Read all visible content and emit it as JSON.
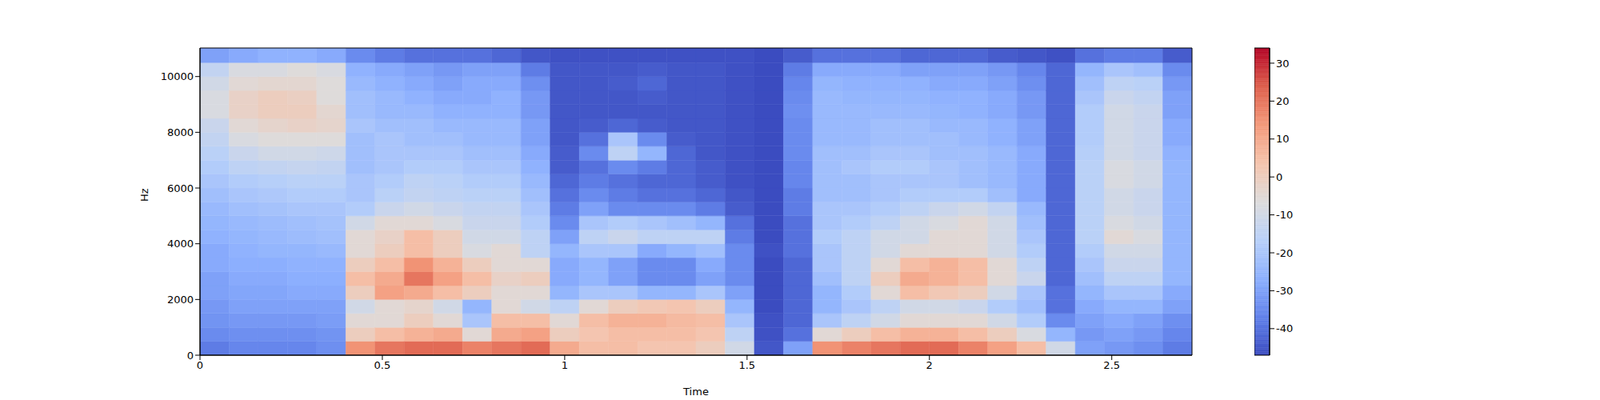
{
  "chart_data": {
    "type": "heatmap",
    "xlabel": "Time",
    "ylabel": "Hz",
    "color": "coolwarm",
    "grid": false,
    "x": [
      0,
      0.08,
      0.16,
      0.24,
      0.32,
      0.4,
      0.48,
      0.56,
      0.64,
      0.72,
      0.8,
      0.88,
      0.96,
      1.04,
      1.12,
      1.2,
      1.28,
      1.36,
      1.44,
      1.52,
      1.6,
      1.68,
      1.76,
      1.84,
      1.92,
      2,
      2.08,
      2.16,
      2.24,
      2.32,
      2.4,
      2.48,
      2.56,
      2.64,
      2.72
    ],
    "y": [
      0,
      500,
      1000,
      1500,
      2000,
      2500,
      3000,
      3500,
      4000,
      4500,
      5000,
      5500,
      6000,
      6500,
      7000,
      7500,
      8000,
      8500,
      9000,
      9500,
      10000,
      10500,
      11025
    ],
    "xlim": [
      0,
      2.72
    ],
    "ylim": [
      0,
      11025
    ],
    "xticks": [
      0,
      0.5,
      1,
      1.5,
      2,
      2.5
    ],
    "yticks": [
      0,
      2000,
      4000,
      6000,
      8000,
      10000
    ],
    "colorbar": {
      "range": [
        -47,
        34
      ],
      "ticks": [
        -40,
        -30,
        -20,
        -10,
        0,
        10,
        20,
        30
      ]
    },
    "cells": [
      [
        -38,
        -35,
        -33,
        -32,
        -30,
        -30,
        -28,
        -28,
        -26,
        -25,
        -24,
        -22,
        -20,
        -18,
        -16,
        -14,
        -12,
        -8,
        -8,
        -10,
        -14,
        -30
      ],
      [
        -36,
        -34,
        -32,
        -30,
        -29,
        -28,
        -27,
        -26,
        -25,
        -24,
        -22,
        -20,
        -18,
        -15,
        -12,
        -8,
        -5,
        -2,
        -2,
        -5,
        -8,
        -28
      ],
      [
        -36,
        -34,
        -32,
        -30,
        -29,
        -28,
        -27,
        -25,
        -24,
        -23,
        -21,
        -19,
        -17,
        -14,
        -10,
        -6,
        -3,
        0,
        0,
        -4,
        -8,
        -26
      ],
      [
        -36,
        -34,
        -32,
        -30,
        -28,
        -27,
        -26,
        -25,
        -23,
        -22,
        -20,
        -18,
        -16,
        -13,
        -10,
        -6,
        -2,
        0,
        -1,
        -4,
        -6,
        -26
      ],
      [
        -34,
        -33,
        -31,
        -30,
        -28,
        -27,
        -26,
        -24,
        -22,
        -21,
        -20,
        -18,
        -16,
        -14,
        -11,
        -6,
        -3,
        -4,
        -6,
        -6,
        -8,
        -28
      ],
      [
        15,
        0,
        -5,
        -10,
        0,
        5,
        0,
        -5,
        -5,
        -10,
        -18,
        -20,
        -20,
        -22,
        -22,
        -22,
        -20,
        -22,
        -22,
        -24,
        -26,
        -35
      ],
      [
        20,
        5,
        -5,
        -5,
        12,
        10,
        5,
        0,
        -2,
        -5,
        -12,
        -16,
        -18,
        -20,
        -20,
        -20,
        -22,
        -24,
        -24,
        -26,
        -28,
        -38
      ],
      [
        22,
        8,
        0,
        -3,
        10,
        20,
        15,
        5,
        5,
        -5,
        -10,
        -14,
        -15,
        -18,
        -20,
        -22,
        -22,
        -24,
        -26,
        -28,
        -30,
        -40
      ],
      [
        22,
        10,
        -5,
        -10,
        5,
        12,
        8,
        0,
        0,
        -8,
        -12,
        -15,
        -16,
        -18,
        -20,
        -22,
        -24,
        -26,
        -28,
        -30,
        -32,
        -40
      ],
      [
        18,
        -5,
        -20,
        -25,
        0,
        5,
        0,
        -8,
        -10,
        -12,
        -14,
        -16,
        -18,
        -20,
        -22,
        -24,
        -24,
        -26,
        -28,
        -28,
        -30,
        -40
      ],
      [
        20,
        10,
        5,
        -5,
        -5,
        -2,
        -5,
        -5,
        -10,
        -12,
        -14,
        -16,
        -18,
        -20,
        -22,
        -24,
        -24,
        -26,
        -26,
        -28,
        -30,
        -42
      ],
      [
        22,
        12,
        5,
        -10,
        -5,
        0,
        -5,
        -15,
        -15,
        -18,
        -20,
        -22,
        -24,
        -26,
        -28,
        -30,
        -30,
        -32,
        -32,
        -34,
        -38,
        -45
      ],
      [
        10,
        0,
        -5,
        -15,
        -25,
        -28,
        -28,
        -25,
        -30,
        -35,
        -38,
        -40,
        -42,
        -44,
        -44,
        -45,
        -45,
        -45,
        -45,
        -45,
        -45,
        -46
      ],
      [
        5,
        3,
        5,
        -5,
        -20,
        -25,
        -25,
        -20,
        -15,
        -20,
        -30,
        -35,
        -38,
        -40,
        -35,
        -40,
        -44,
        -45,
        -45,
        -45,
        -45,
        -46
      ],
      [
        5,
        5,
        8,
        0,
        -20,
        -30,
        -30,
        -20,
        -12,
        -18,
        -35,
        -38,
        -40,
        -35,
        -15,
        -20,
        -42,
        -45,
        -45,
        -44,
        -45,
        -46
      ],
      [
        3,
        5,
        8,
        2,
        -25,
        -35,
        -35,
        -28,
        -15,
        -20,
        -35,
        -40,
        -42,
        -38,
        -25,
        -35,
        -44,
        -45,
        -44,
        -42,
        -44,
        -46
      ],
      [
        3,
        5,
        6,
        3,
        -25,
        -35,
        -35,
        -25,
        -15,
        -22,
        -35,
        -40,
        -42,
        -42,
        -42,
        -44,
        -45,
        -45,
        -45,
        -45,
        -45,
        -46
      ],
      [
        0,
        3,
        5,
        0,
        -20,
        -30,
        -28,
        -22,
        -15,
        -25,
        -38,
        -42,
        -44,
        -44,
        -45,
        -45,
        -45,
        -45,
        -45,
        -45,
        -45,
        -46
      ],
      [
        -10,
        -15,
        -20,
        -25,
        -30,
        -35,
        -35,
        -35,
        -38,
        -40,
        -44,
        -45,
        -46,
        -46,
        -46,
        -46,
        -46,
        -46,
        -46,
        -46,
        -46,
        -46
      ],
      [
        -45,
        -46,
        -46,
        -47,
        -47,
        -47,
        -47,
        -46,
        -47,
        -47,
        -47,
        -47,
        -47,
        -47,
        -47,
        -47,
        -47,
        -47,
        -47,
        -47,
        -47,
        -47
      ],
      [
        -30,
        -40,
        -42,
        -42,
        -42,
        -42,
        -42,
        -40,
        -40,
        -40,
        -38,
        -38,
        -36,
        -36,
        -35,
        -35,
        -35,
        -34,
        -35,
        -36,
        -38,
        -44
      ],
      [
        15,
        -5,
        -20,
        -25,
        -25,
        -22,
        -20,
        -20,
        -18,
        -20,
        -20,
        -22,
        -22,
        -22,
        -22,
        -24,
        -24,
        -24,
        -24,
        -25,
        -28,
        -40
      ],
      [
        18,
        0,
        -15,
        -20,
        -18,
        -15,
        -15,
        -15,
        -15,
        -18,
        -20,
        -22,
        -22,
        -20,
        -22,
        -24,
        -24,
        -24,
        -25,
        -26,
        -28,
        -40
      ],
      [
        20,
        5,
        -10,
        -15,
        -5,
        0,
        -5,
        -10,
        -10,
        -15,
        -18,
        -20,
        -20,
        -18,
        -20,
        -22,
        -22,
        -24,
        -25,
        -26,
        -28,
        -40
      ],
      [
        22,
        8,
        -5,
        -10,
        5,
        10,
        5,
        -5,
        -10,
        -10,
        -15,
        -18,
        -20,
        -18,
        -20,
        -22,
        -22,
        -24,
        -25,
        -26,
        -30,
        -42
      ],
      [
        22,
        8,
        -5,
        -10,
        2,
        8,
        8,
        -5,
        -5,
        -8,
        -12,
        -18,
        -20,
        -20,
        -22,
        -22,
        -24,
        -25,
        -26,
        -28,
        -30,
        -42
      ],
      [
        18,
        5,
        -5,
        -12,
        0,
        5,
        5,
        -5,
        -5,
        -5,
        -10,
        -18,
        -22,
        -22,
        -22,
        -24,
        -24,
        -26,
        -26,
        -28,
        -30,
        -42
      ],
      [
        12,
        0,
        -10,
        -18,
        -10,
        -5,
        -5,
        -10,
        -10,
        -10,
        -14,
        -22,
        -24,
        -24,
        -24,
        -26,
        -26,
        -28,
        -28,
        -30,
        -32,
        -44
      ],
      [
        5,
        -8,
        -18,
        -22,
        -20,
        -12,
        -15,
        -18,
        -20,
        -22,
        -24,
        -28,
        -28,
        -28,
        -28,
        -30,
        -30,
        -32,
        -32,
        -34,
        -36,
        -45
      ],
      [
        -10,
        -25,
        -35,
        -40,
        -40,
        -42,
        -42,
        -42,
        -42,
        -42,
        -42,
        -42,
        -42,
        -42,
        -42,
        -42,
        -42,
        -42,
        -42,
        -42,
        -42,
        -46
      ],
      [
        -30,
        -32,
        -30,
        -28,
        -25,
        -22,
        -20,
        -18,
        -16,
        -16,
        -16,
        -16,
        -16,
        -16,
        -17,
        -18,
        -18,
        -18,
        -20,
        -22,
        -25,
        -40
      ],
      [
        -32,
        -30,
        -28,
        -25,
        -20,
        -15,
        -12,
        -10,
        -5,
        -8,
        -10,
        -10,
        -8,
        -8,
        -10,
        -10,
        -10,
        -10,
        -12,
        -15,
        -20,
        -38
      ],
      [
        -34,
        -32,
        -30,
        -25,
        -20,
        -15,
        -12,
        -10,
        -8,
        -10,
        -12,
        -12,
        -10,
        -10,
        -12,
        -12,
        -12,
        -12,
        -14,
        -16,
        -22,
        -38
      ],
      [
        -38,
        -36,
        -34,
        -30,
        -28,
        -25,
        -25,
        -25,
        -25,
        -25,
        -25,
        -25,
        -25,
        -25,
        -26,
        -28,
        -28,
        -30,
        -30,
        -32,
        -35,
        -44
      ]
    ]
  }
}
